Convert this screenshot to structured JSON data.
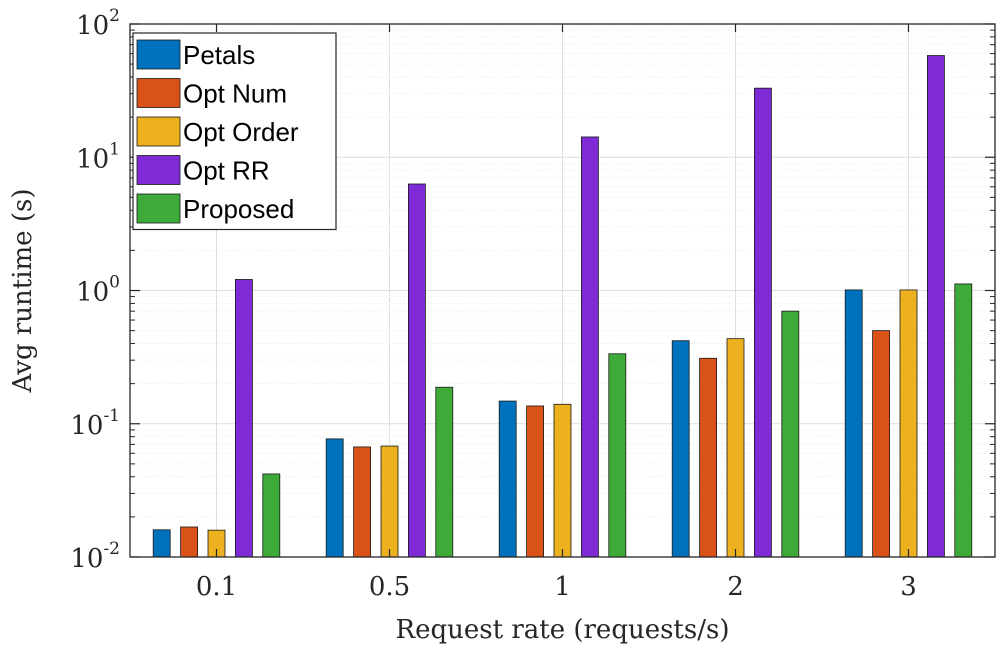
{
  "chart_data": {
    "type": "bar",
    "title": "",
    "xlabel": "Request rate (requests/s)",
    "ylabel": "Avg runtime (s)",
    "y_scale": "log",
    "ylim": [
      0.01,
      100
    ],
    "y_ticks": [
      {
        "base": "10",
        "exp": "-2"
      },
      {
        "base": "10",
        "exp": "-1"
      },
      {
        "base": "10",
        "exp": "0"
      },
      {
        "base": "10",
        "exp": "1"
      },
      {
        "base": "10",
        "exp": "2"
      }
    ],
    "grid": true,
    "legend_position": "top-left",
    "categories": [
      "0.1",
      "0.5",
      "1",
      "2",
      "3"
    ],
    "series": [
      {
        "name": "Petals",
        "color": "#0072BD",
        "values": [
          0.016,
          0.077,
          0.148,
          0.42,
          1.01
        ]
      },
      {
        "name": "Opt Num",
        "color": "#D95319",
        "values": [
          0.0168,
          0.067,
          0.136,
          0.31,
          0.5
        ]
      },
      {
        "name": "Opt Order",
        "color": "#EDB120",
        "values": [
          0.0159,
          0.068,
          0.14,
          0.435,
          1.01
        ]
      },
      {
        "name": "Opt RR",
        "color": "#7E2BD6",
        "values": [
          1.21,
          6.3,
          14.2,
          33.0,
          58.0
        ]
      },
      {
        "name": "Proposed",
        "color": "#3EAA3A",
        "values": [
          0.042,
          0.188,
          0.335,
          0.7,
          1.12
        ]
      }
    ]
  }
}
